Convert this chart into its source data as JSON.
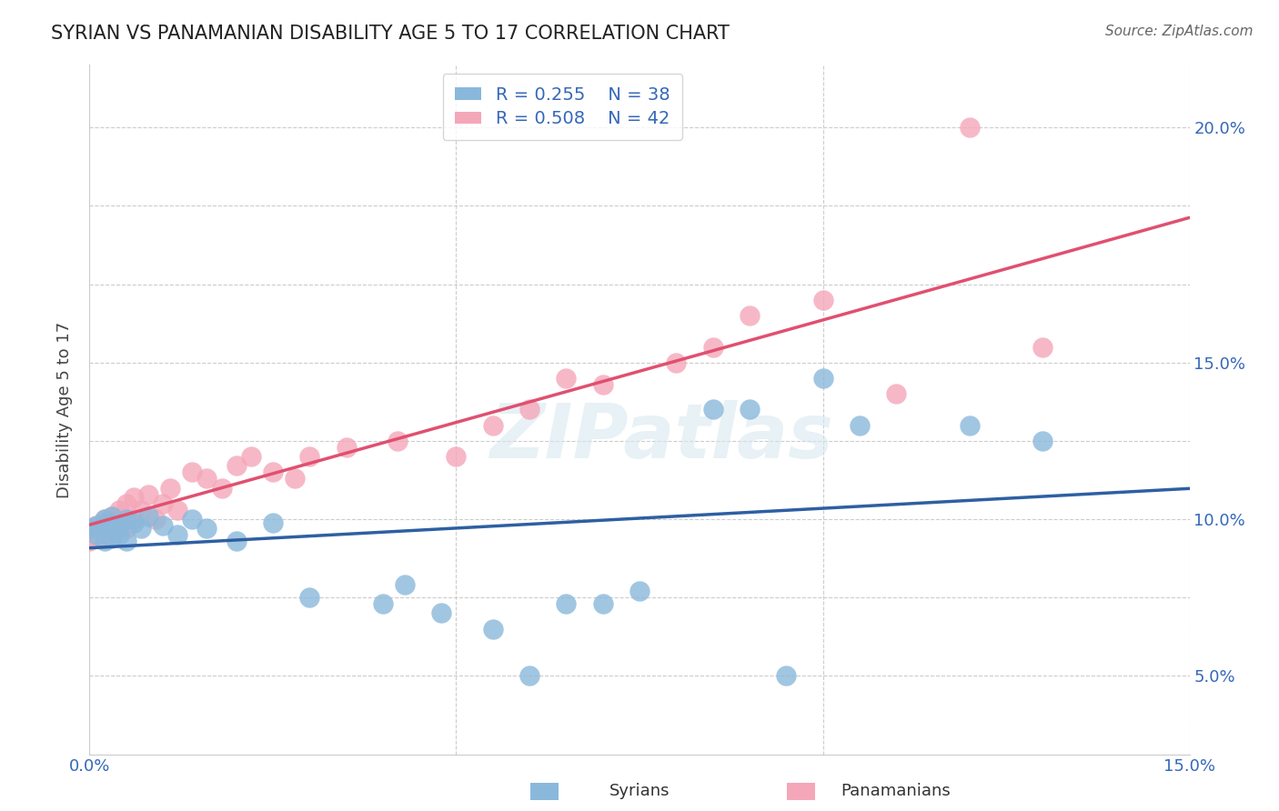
{
  "title": "SYRIAN VS PANAMANIAN DISABILITY AGE 5 TO 17 CORRELATION CHART",
  "source": "Source: ZipAtlas.com",
  "ylabel": "Disability Age 5 to 17",
  "xlim": [
    0.0,
    0.15
  ],
  "ylim": [
    0.0,
    0.22
  ],
  "grid_color": "#cccccc",
  "background_color": "#ffffff",
  "syrian_color": "#8ab8db",
  "panamanian_color": "#f4a7b9",
  "syrian_line_color": "#2e5fa3",
  "panamanian_line_color": "#e05070",
  "label_color": "#3568b8",
  "title_color": "#222222",
  "source_color": "#666666",
  "ylabel_color": "#444444",
  "syrian_R": 0.255,
  "syrian_N": 38,
  "panamanian_R": 0.508,
  "panamanian_N": 42,
  "syrian_x": [
    0.0,
    0.001,
    0.001,
    0.002,
    0.002,
    0.002,
    0.003,
    0.003,
    0.003,
    0.004,
    0.004,
    0.005,
    0.005,
    0.006,
    0.007,
    0.008,
    0.01,
    0.012,
    0.014,
    0.016,
    0.02,
    0.025,
    0.03,
    0.04,
    0.043,
    0.048,
    0.055,
    0.06,
    0.065,
    0.07,
    0.075,
    0.085,
    0.09,
    0.095,
    0.1,
    0.105,
    0.12,
    0.13
  ],
  "syrian_y": [
    0.072,
    0.073,
    0.07,
    0.075,
    0.068,
    0.074,
    0.072,
    0.076,
    0.069,
    0.073,
    0.07,
    0.075,
    0.068,
    0.074,
    0.072,
    0.076,
    0.073,
    0.07,
    0.075,
    0.072,
    0.068,
    0.074,
    0.05,
    0.048,
    0.054,
    0.045,
    0.04,
    0.025,
    0.048,
    0.048,
    0.052,
    0.11,
    0.11,
    0.025,
    0.12,
    0.105,
    0.105,
    0.1
  ],
  "panamanian_x": [
    0.0,
    0.001,
    0.001,
    0.002,
    0.002,
    0.003,
    0.003,
    0.003,
    0.004,
    0.004,
    0.005,
    0.005,
    0.006,
    0.006,
    0.007,
    0.008,
    0.009,
    0.01,
    0.011,
    0.012,
    0.014,
    0.016,
    0.018,
    0.02,
    0.022,
    0.025,
    0.028,
    0.03,
    0.035,
    0.042,
    0.05,
    0.055,
    0.06,
    0.065,
    0.07,
    0.08,
    0.085,
    0.09,
    0.1,
    0.11,
    0.12,
    0.13
  ],
  "panamanian_y": [
    0.068,
    0.073,
    0.069,
    0.075,
    0.07,
    0.074,
    0.071,
    0.076,
    0.073,
    0.078,
    0.072,
    0.08,
    0.075,
    0.082,
    0.078,
    0.083,
    0.075,
    0.08,
    0.085,
    0.078,
    0.09,
    0.088,
    0.085,
    0.092,
    0.095,
    0.09,
    0.088,
    0.095,
    0.098,
    0.1,
    0.095,
    0.105,
    0.11,
    0.12,
    0.118,
    0.125,
    0.13,
    0.14,
    0.145,
    0.115,
    0.2,
    0.13
  ]
}
